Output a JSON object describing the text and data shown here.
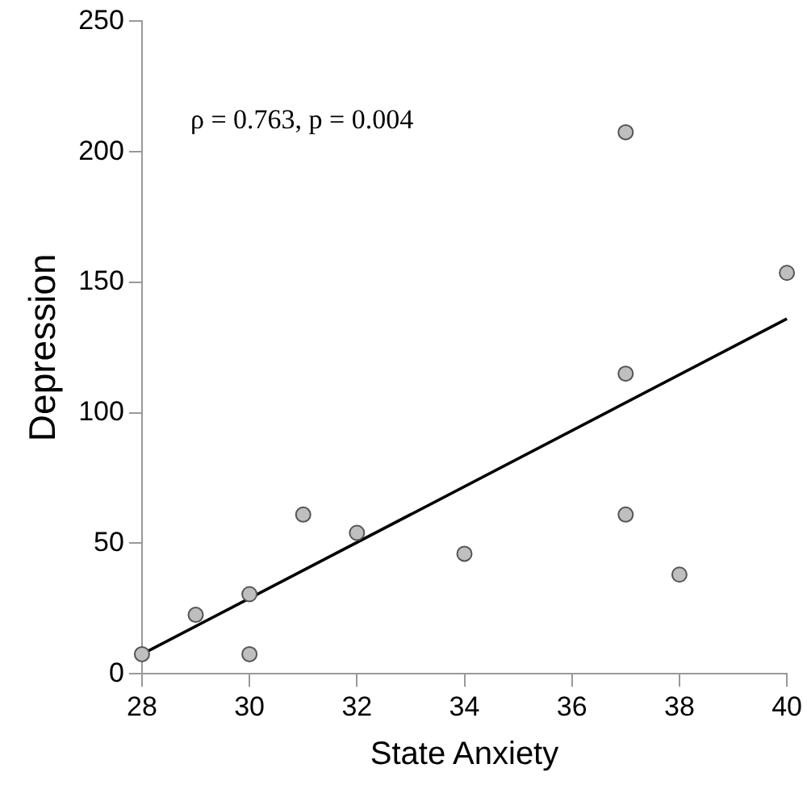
{
  "chart_data": {
    "type": "scatter",
    "xlabel": "State Anxiety",
    "ylabel": "Depression",
    "annotations": [
      "ρ = 0.763, p = 0.004"
    ],
    "xlim": [
      28,
      40
    ],
    "xticks": [
      28,
      30,
      32,
      34,
      36,
      38,
      40
    ],
    "ylim": [
      0,
      250
    ],
    "yticks": [
      0,
      50,
      100,
      150,
      200,
      250
    ],
    "grid": false,
    "legend": false,
    "marker": "circle",
    "series": [
      {
        "color": "#bfbfbf",
        "x": [
          28,
          29,
          30,
          30,
          31,
          32,
          34,
          37,
          37,
          37,
          38,
          40
        ],
        "values": [
          7.5,
          22.6,
          30.5,
          7.5,
          61,
          54,
          46,
          207.5,
          115,
          61,
          38,
          153.6
        ]
      },
      {
        "type": "line",
        "color": "#000000",
        "x": [
          28,
          40
        ],
        "values": [
          7.5,
          136
        ],
        "marker": "none",
        "line_style": "solid"
      }
    ]
  }
}
